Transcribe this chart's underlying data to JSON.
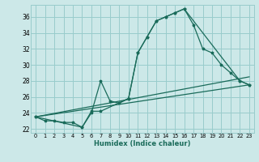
{
  "xlabel": "Humidex (Indice chaleur)",
  "bg_color": "#cce8e8",
  "grid_color": "#99cccc",
  "line_color": "#1a6b5a",
  "xlim": [
    -0.5,
    23.5
  ],
  "ylim": [
    21.5,
    37.5
  ],
  "yticks": [
    22,
    24,
    26,
    28,
    30,
    32,
    34,
    36
  ],
  "xticks": [
    0,
    1,
    2,
    3,
    4,
    5,
    6,
    7,
    8,
    9,
    10,
    11,
    12,
    13,
    14,
    15,
    16,
    17,
    18,
    19,
    20,
    21,
    22,
    23
  ],
  "line1_x": [
    0,
    1,
    2,
    3,
    4,
    5,
    6,
    7,
    8,
    9,
    10,
    11,
    12,
    13,
    14,
    15,
    16,
    17,
    18,
    19,
    20,
    21,
    22,
    23
  ],
  "line1_y": [
    23.5,
    23.0,
    23.0,
    22.8,
    22.8,
    22.2,
    24.0,
    28.0,
    25.5,
    25.2,
    25.8,
    31.5,
    33.5,
    35.5,
    36.0,
    36.5,
    37.0,
    35.0,
    32.0,
    31.5,
    30.0,
    29.0,
    28.0,
    27.5
  ],
  "line2_x": [
    0,
    5,
    6,
    7,
    10,
    11,
    12,
    13,
    14,
    15,
    16,
    22,
    23
  ],
  "line2_y": [
    23.5,
    22.2,
    24.2,
    24.2,
    25.8,
    31.5,
    33.5,
    35.5,
    36.0,
    36.5,
    37.0,
    28.0,
    27.5
  ],
  "line3_x": [
    0,
    23
  ],
  "line3_y": [
    23.5,
    27.5
  ],
  "line4_x": [
    0,
    23
  ],
  "line4_y": [
    23.5,
    28.5
  ]
}
